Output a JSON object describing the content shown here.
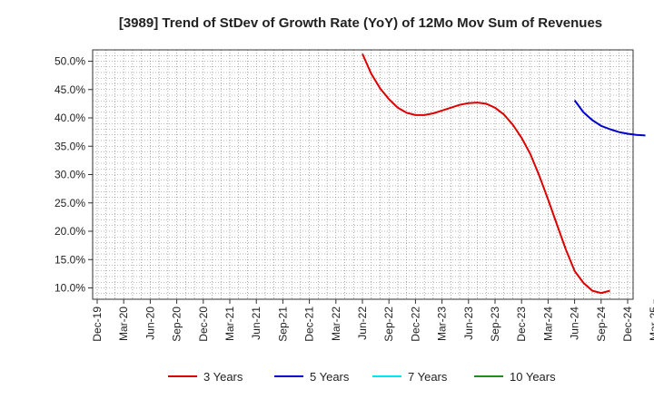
{
  "chart_data": {
    "type": "line",
    "title": "[3989]  Trend of StDev of Growth Rate (YoY) of 12Mo Mov Sum of Revenues",
    "xlabel": "",
    "ylabel": "",
    "x_ticks": [
      "Dec-19",
      "Mar-20",
      "Jun-20",
      "Sep-20",
      "Dec-20",
      "Mar-21",
      "Jun-21",
      "Sep-21",
      "Dec-21",
      "Mar-22",
      "Jun-22",
      "Sep-22",
      "Dec-22",
      "Mar-23",
      "Jun-23",
      "Sep-23",
      "Dec-23",
      "Mar-24",
      "Jun-24",
      "Sep-24",
      "Dec-24",
      "Mar-25"
    ],
    "y_ticks": [
      "10.0%",
      "15.0%",
      "20.0%",
      "25.0%",
      "30.0%",
      "35.0%",
      "40.0%",
      "45.0%",
      "50.0%"
    ],
    "y_tick_values": [
      10,
      15,
      20,
      25,
      30,
      35,
      40,
      45,
      50
    ],
    "ylim": [
      8.0,
      52.0
    ],
    "grid": true,
    "legend_position": "bottom",
    "series": [
      {
        "name": "3 Years",
        "color": "#dd0000",
        "start_index": 30,
        "values": [
          51.3,
          47.8,
          45.2,
          43.3,
          41.8,
          40.9,
          40.5,
          40.5,
          40.8,
          41.3,
          41.8,
          42.3,
          42.6,
          42.7,
          42.5,
          41.8,
          40.6,
          38.8,
          36.5,
          33.6,
          29.8,
          25.6,
          21.2,
          16.8,
          13.0,
          10.9,
          9.5,
          9.1,
          9.5
        ]
      },
      {
        "name": "5 Years",
        "color": "#0000cc",
        "start_index": 54,
        "values": [
          43.1,
          41.0,
          39.6,
          38.6,
          38.0,
          37.5,
          37.2,
          37.0,
          36.9
        ]
      },
      {
        "name": "7 Years",
        "color": "#00e5ee",
        "start_index": null,
        "values": []
      },
      {
        "name": "10 Years",
        "color": "#228b22",
        "start_index": null,
        "values": []
      }
    ]
  }
}
